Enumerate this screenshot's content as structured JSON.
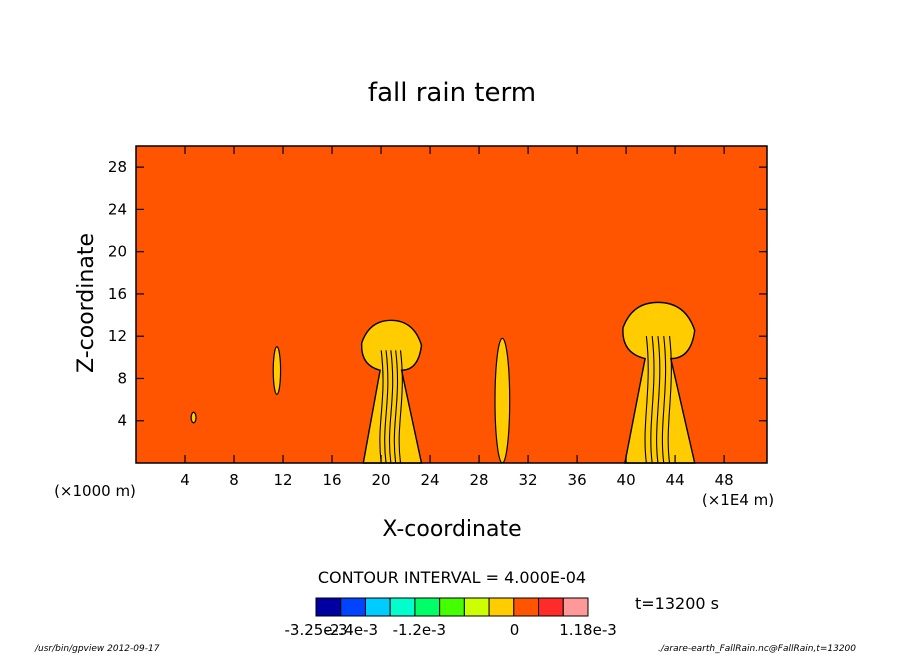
{
  "chart_data": {
    "type": "heatmap",
    "title": "fall rain term",
    "xlabel": "X-coordinate",
    "ylabel": "Z-coordinate",
    "x_unit": "(×1000 m)",
    "x_scale_note": "(×1E4 m)",
    "xlim": [
      0,
      51.5
    ],
    "ylim": [
      0,
      30
    ],
    "x_ticks": [
      4,
      8,
      12,
      16,
      20,
      24,
      28,
      32,
      36,
      40,
      44,
      48
    ],
    "y_ticks": [
      4,
      8,
      12,
      16,
      20,
      24,
      28
    ],
    "background_level_color": "#ff5500",
    "contour_interval": "CONTOUR INTERVAL = 4.000E-04",
    "time": "t=13200 s",
    "colorbar": {
      "colors": [
        "#0000a0",
        "#0044ff",
        "#00ccff",
        "#00ffcc",
        "#00ff66",
        "#44ff00",
        "#ccff00",
        "#ffcc00",
        "#ff5500",
        "#ff2a2a",
        "#ff9999"
      ],
      "labels": [
        "-3.25e-3",
        "-2.4e-3",
        "-1.2e-3",
        "0",
        "1.18e-3"
      ],
      "label_positions": [
        0,
        0.13,
        0.38,
        0.73,
        1.0
      ]
    },
    "features": [
      {
        "x": 11.5,
        "zbottom": 6.5,
        "ztop": 11,
        "color": "#ffcc00",
        "width": 0.6
      },
      {
        "x": 4.7,
        "zbottom": 3.8,
        "ztop": 4.8,
        "color": "#ffcc00",
        "width": 0.4
      },
      {
        "x": 20.8,
        "zbottom": 0,
        "ztop": 13.5,
        "color": "#ffcc00",
        "width": 5
      },
      {
        "x": 29.9,
        "zbottom": 0,
        "ztop": 11.8,
        "color": "#ffcc00",
        "width": 1.2
      },
      {
        "x": 42.6,
        "zbottom": 0,
        "ztop": 15.2,
        "color": "#ffcc00",
        "width": 6
      }
    ],
    "footer_left": "/usr/bin/gpview  2012-09-17",
    "footer_right": "./arare-earth_FallRain.nc@FallRain,t=13200"
  }
}
